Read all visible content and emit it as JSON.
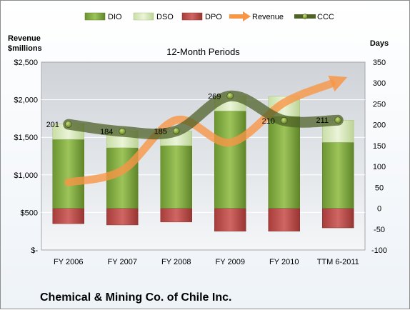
{
  "chart_data": {
    "type": "bar",
    "title": "12-Month Periods",
    "footer": "Chemical & Mining Co. of Chile Inc.",
    "y_left_label": [
      "Revenue",
      "$millions"
    ],
    "y_right_label": "Days",
    "categories": [
      "FY 2006",
      "FY 2007",
      "FY 2008",
      "FY 2009",
      "FY 2010",
      "TTM 6-2011"
    ],
    "y_left_ticks": [
      "$-",
      "$500",
      "$1,000",
      "$1,500",
      "$2,000",
      "$2,500"
    ],
    "y_left_range": [
      0,
      2500
    ],
    "y_right_ticks": [
      "-100",
      "-50",
      "0",
      "50",
      "100",
      "150",
      "200",
      "250",
      "300",
      "350"
    ],
    "y_right_range": [
      -100,
      350
    ],
    "legend": [
      "DIO",
      "DSO",
      "DPO",
      "Revenue",
      "CCC"
    ],
    "legend_position": "top",
    "colors": {
      "DIO": "#7fa83a",
      "DSO": "#dcecc0",
      "DPO": "#c0504d",
      "Revenue": "#f79646",
      "CCC": "#4f6228"
    },
    "series": [
      {
        "name": "DIO",
        "axis": "right",
        "values": [
          165,
          145,
          150,
          233,
          220,
          158
        ]
      },
      {
        "name": "DSO",
        "axis": "right",
        "values": [
          37,
          40,
          35,
          36,
          48,
          53
        ]
      },
      {
        "name": "DPO",
        "axis": "right",
        "values": [
          -37,
          -40,
          -33,
          -55,
          -55,
          -47
        ]
      },
      {
        "name": "Revenue",
        "axis": "left",
        "values": [
          900,
          1060,
          1730,
          1430,
          1960,
          2250
        ]
      },
      {
        "name": "CCC",
        "axis": "right",
        "values": [
          201,
          184,
          185,
          269,
          210,
          211
        ]
      }
    ],
    "ccc_labels": [
      "201",
      "184",
      "185",
      "269",
      "210",
      "211"
    ]
  }
}
